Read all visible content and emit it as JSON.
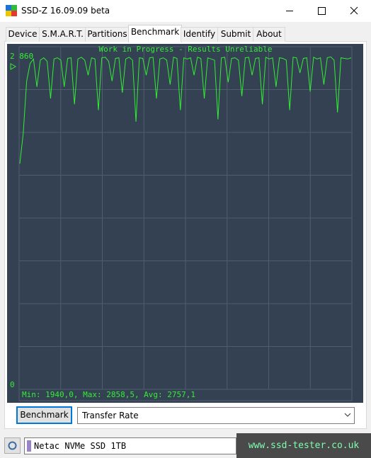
{
  "window": {
    "title": "SSD-Z 16.09.09 beta"
  },
  "tabs": [
    "Device",
    "S.M.A.R.T.",
    "Partitions",
    "Benchmark",
    "Identify",
    "Submit",
    "About"
  ],
  "chart_data": {
    "type": "line",
    "title": "Work in Progress - Results Unreliable",
    "annotation": "Min: 1940,0, Max: 2858,5, Avg: 2757,1",
    "color": "#33ee33",
    "ylim": [
      0,
      2860
    ],
    "yticks": [
      0,
      {
        "value": 2860,
        "label": "2 860"
      }
    ],
    "values": [
      1940,
      2200,
      2650,
      2800,
      2840,
      2600,
      2830,
      2850,
      2820,
      2500,
      2840,
      2850,
      2830,
      2600,
      2845,
      2850,
      2450,
      2840,
      2855,
      2830,
      2700,
      2850,
      2840,
      2400,
      2850,
      2855,
      2820,
      2650,
      2845,
      2850,
      2550,
      2840,
      2855,
      2830,
      2300,
      2850,
      2845,
      2700,
      2850,
      2855,
      2500,
      2840,
      2850,
      2830,
      2620,
      2855,
      2845,
      2400,
      2850,
      2840,
      2850,
      2700,
      2855,
      2845,
      2500,
      2850,
      2840,
      2830,
      2320,
      2850,
      2855,
      2640,
      2845,
      2850,
      2830,
      2520,
      2850,
      2855,
      2700,
      2845,
      2850,
      2450,
      2855,
      2840,
      2850,
      2600,
      2850,
      2845,
      2830,
      2400,
      2855,
      2850,
      2720,
      2845,
      2850,
      2560,
      2855,
      2840,
      2850,
      2620,
      2850,
      2858.5,
      2830,
      2380,
      2850,
      2845,
      2840,
      2850
    ]
  },
  "controls": {
    "button": "Benchmark",
    "dropdown": "Transfer Rate"
  },
  "status": {
    "drive": "Netac NVMe SSD 1TB"
  },
  "watermark": "www.ssd-tester.co.uk"
}
